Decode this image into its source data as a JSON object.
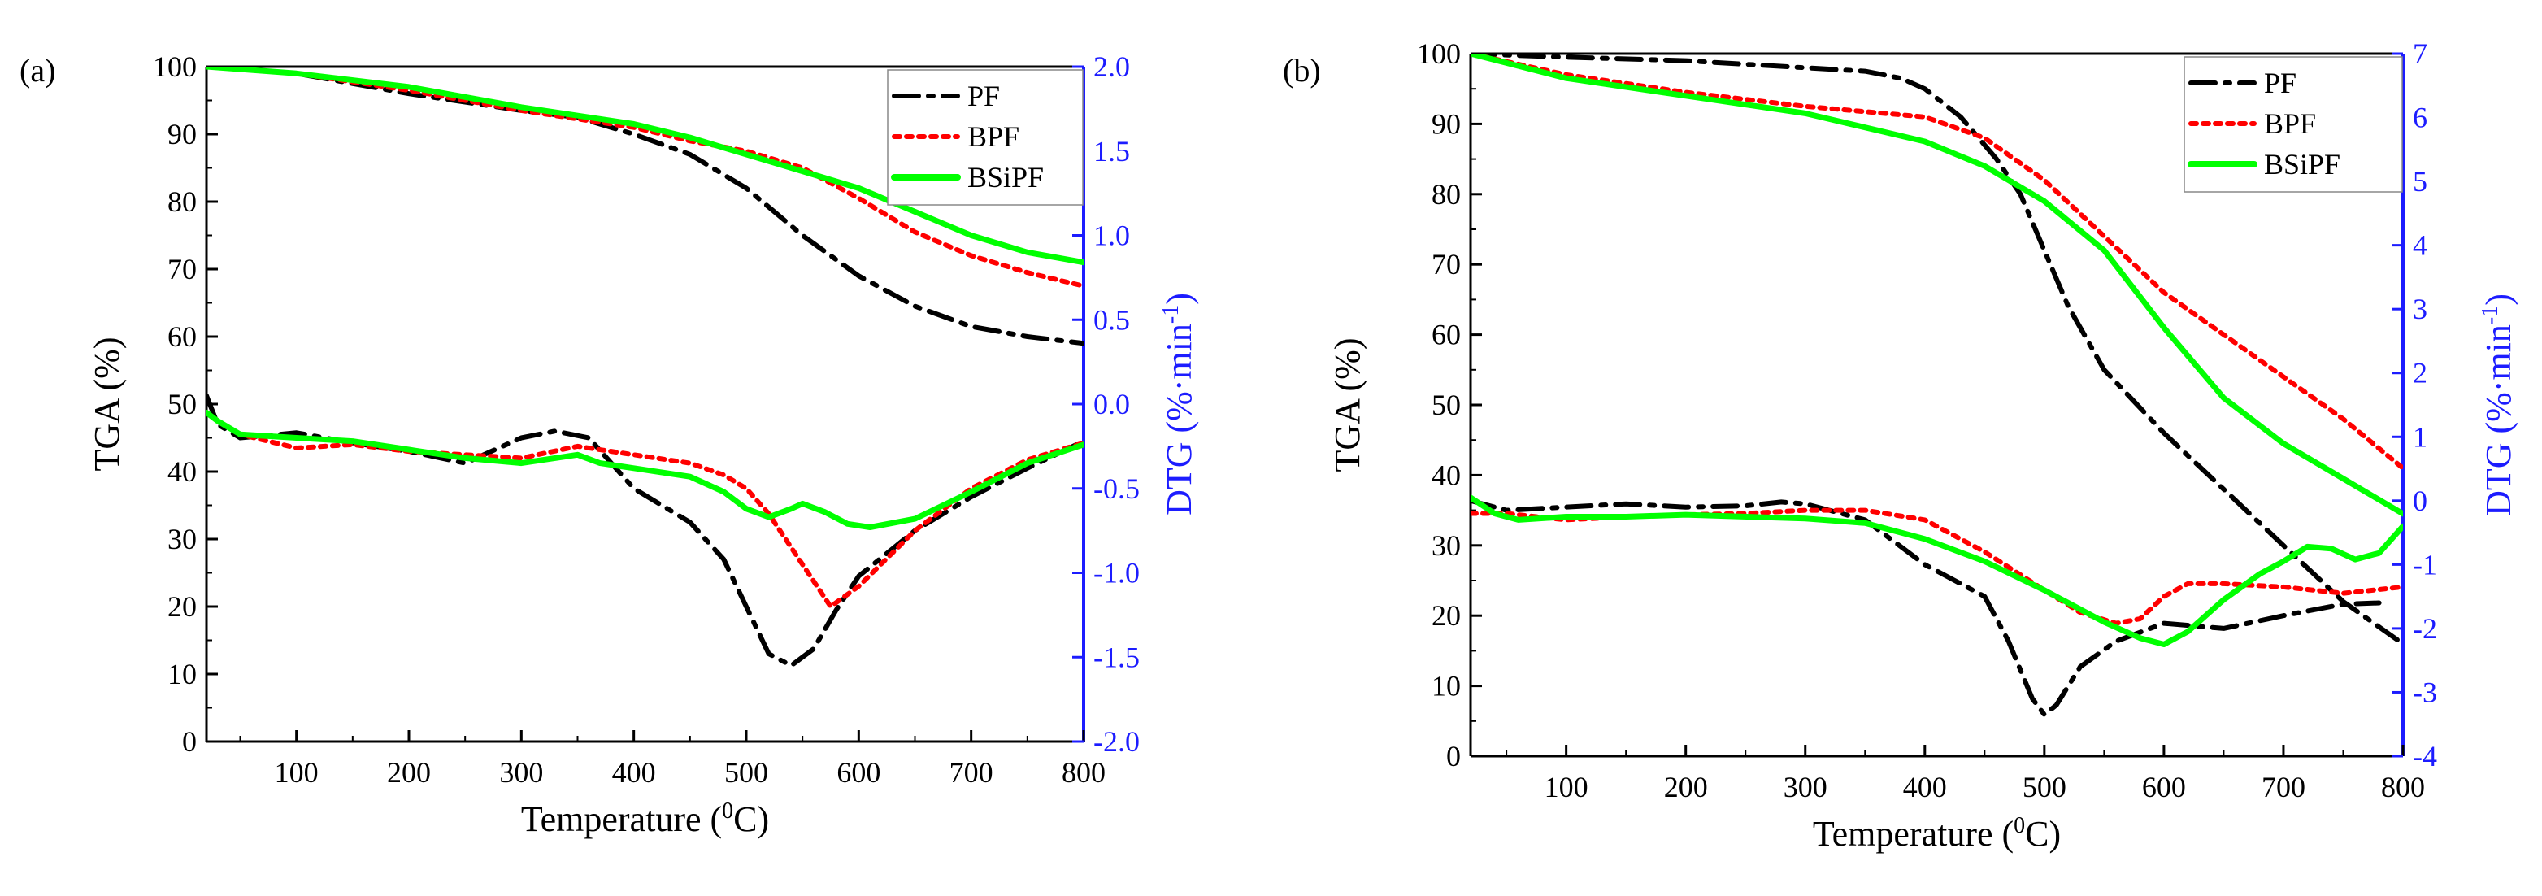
{
  "chart_data": [
    {
      "type": "line",
      "panel_label": "(a)",
      "xlabel_main": "Temperature (",
      "xlabel_sup": "0",
      "xlabel_unit": "C)",
      "ylabel_left": "TGA (%)",
      "ylabel_right_main": "DTG (%·min",
      "ylabel_right_sup": "-1",
      "ylabel_right_close": ")",
      "xlim": [
        20,
        800
      ],
      "ylim_left": [
        0,
        100
      ],
      "ylim_right": [
        -2.0,
        2.0
      ],
      "x_ticks": [
        "100",
        "200",
        "300",
        "400",
        "500",
        "600",
        "700",
        "800"
      ],
      "y_left_ticks": [
        "0",
        "10",
        "20",
        "30",
        "40",
        "50",
        "60",
        "70",
        "80",
        "90",
        "100"
      ],
      "y_right_ticks": [
        "-2.0",
        "-1.5",
        "-1.0",
        "-0.5",
        "0.0",
        "0.5",
        "1.0",
        "1.5",
        "2.0"
      ],
      "legend": [
        {
          "name": "PF",
          "color": "#000000",
          "dash": "dashdot"
        },
        {
          "name": "BPF",
          "color": "#ff0000",
          "dash": "dot"
        },
        {
          "name": "BSiPF",
          "color": "#00ff00",
          "dash": "solid"
        }
      ],
      "series": [
        {
          "name": "PF",
          "kind": "TGA",
          "axis": "left",
          "color": "#000000",
          "dash": "dashdot",
          "x": [
            20,
            100,
            200,
            300,
            350,
            400,
            450,
            500,
            550,
            600,
            650,
            700,
            750,
            800
          ],
          "y": [
            100,
            99,
            96,
            93.5,
            92.5,
            90,
            87,
            82,
            75,
            69,
            64.5,
            61.5,
            60,
            59
          ]
        },
        {
          "name": "BPF",
          "kind": "TGA",
          "axis": "left",
          "color": "#ff0000",
          "dash": "dot",
          "x": [
            20,
            100,
            200,
            300,
            400,
            450,
            500,
            550,
            600,
            650,
            700,
            750,
            800
          ],
          "y": [
            100,
            99,
            96.5,
            93.5,
            91,
            89,
            87.5,
            85,
            80.5,
            75.5,
            72,
            69.5,
            67.5
          ]
        },
        {
          "name": "BSiPF",
          "kind": "TGA",
          "axis": "left",
          "color": "#00ff00",
          "dash": "solid",
          "x": [
            20,
            100,
            200,
            300,
            400,
            450,
            500,
            550,
            600,
            650,
            700,
            750,
            800
          ],
          "y": [
            100,
            99,
            97,
            94,
            91.5,
            89.5,
            87,
            84.5,
            82,
            78.5,
            75,
            72.5,
            71
          ]
        },
        {
          "name": "PF",
          "kind": "DTG",
          "axis": "right",
          "color": "#000000",
          "dash": "dashdot",
          "x": [
            20,
            30,
            50,
            100,
            150,
            200,
            250,
            300,
            330,
            360,
            380,
            400,
            450,
            480,
            500,
            520,
            540,
            560,
            580,
            600,
            650,
            700,
            750,
            800
          ],
          "y": [
            0.05,
            -0.12,
            -0.2,
            -0.17,
            -0.23,
            -0.28,
            -0.35,
            -0.2,
            -0.16,
            -0.2,
            -0.35,
            -0.5,
            -0.7,
            -0.92,
            -1.2,
            -1.48,
            -1.55,
            -1.45,
            -1.22,
            -1.02,
            -0.75,
            -0.55,
            -0.38,
            -0.22
          ]
        },
        {
          "name": "BPF",
          "kind": "DTG",
          "axis": "right",
          "color": "#ff0000",
          "dash": "dot",
          "x": [
            20,
            30,
            50,
            100,
            150,
            200,
            250,
            300,
            350,
            400,
            450,
            480,
            500,
            520,
            540,
            560,
            575,
            600,
            650,
            700,
            750,
            800
          ],
          "y": [
            -0.05,
            -0.1,
            -0.18,
            -0.26,
            -0.24,
            -0.28,
            -0.3,
            -0.32,
            -0.25,
            -0.3,
            -0.35,
            -0.42,
            -0.5,
            -0.65,
            -0.85,
            -1.05,
            -1.2,
            -1.08,
            -0.75,
            -0.5,
            -0.33,
            -0.23
          ]
        },
        {
          "name": "BSiPF",
          "kind": "DTG",
          "axis": "right",
          "color": "#00ff00",
          "dash": "solid",
          "x": [
            20,
            30,
            50,
            100,
            150,
            200,
            250,
            300,
            330,
            350,
            370,
            400,
            450,
            480,
            500,
            520,
            540,
            550,
            570,
            590,
            610,
            650,
            700,
            750,
            800
          ],
          "y": [
            -0.05,
            -0.1,
            -0.18,
            -0.2,
            -0.22,
            -0.27,
            -0.32,
            -0.35,
            -0.32,
            -0.3,
            -0.35,
            -0.38,
            -0.43,
            -0.52,
            -0.62,
            -0.67,
            -0.62,
            -0.59,
            -0.64,
            -0.71,
            -0.73,
            -0.68,
            -0.52,
            -0.35,
            -0.24
          ]
        }
      ]
    },
    {
      "type": "line",
      "panel_label": "(b)",
      "xlabel_main": "Temperature (",
      "xlabel_sup": "0",
      "xlabel_unit": "C)",
      "ylabel_left": "TGA (%)",
      "ylabel_right_main": "DTG (%·min",
      "ylabel_right_sup": "-1",
      "ylabel_right_close": ")",
      "xlim": [
        20,
        800
      ],
      "ylim_left": [
        0,
        100
      ],
      "ylim_right": [
        -4,
        7
      ],
      "x_ticks": [
        "100",
        "200",
        "300",
        "400",
        "500",
        "600",
        "700",
        "800"
      ],
      "y_left_ticks": [
        "0",
        "10",
        "20",
        "30",
        "40",
        "50",
        "60",
        "70",
        "80",
        "90",
        "100"
      ],
      "y_right_ticks": [
        "-4",
        "-3",
        "-2",
        "-1",
        "0",
        "1",
        "2",
        "3",
        "4",
        "5",
        "6",
        "7"
      ],
      "legend": [
        {
          "name": "PF",
          "color": "#000000",
          "dash": "dashdot"
        },
        {
          "name": "BPF",
          "color": "#ff0000",
          "dash": "dot"
        },
        {
          "name": "BSiPF",
          "color": "#00ff00",
          "dash": "solid"
        }
      ],
      "series": [
        {
          "name": "PF",
          "kind": "TGA",
          "axis": "left",
          "color": "#000000",
          "dash": "dashdot",
          "x": [
            20,
            100,
            200,
            250,
            300,
            350,
            380,
            400,
            430,
            460,
            480,
            500,
            520,
            550,
            600,
            650,
            700,
            750,
            800
          ],
          "y": [
            100,
            99.5,
            99,
            98.5,
            98,
            97.5,
            96.5,
            95,
            91,
            85,
            80,
            72,
            64,
            55,
            46,
            38,
            30,
            22,
            16
          ]
        },
        {
          "name": "BPF",
          "kind": "TGA",
          "axis": "left",
          "color": "#ff0000",
          "dash": "dot",
          "x": [
            20,
            100,
            200,
            300,
            400,
            450,
            500,
            550,
            600,
            650,
            700,
            750,
            800
          ],
          "y": [
            100,
            97,
            94.5,
            92.5,
            91,
            88,
            82,
            74,
            66,
            60,
            54,
            48,
            41
          ]
        },
        {
          "name": "BSiPF",
          "kind": "TGA",
          "axis": "left",
          "color": "#00ff00",
          "dash": "solid",
          "x": [
            20,
            100,
            200,
            300,
            400,
            450,
            500,
            550,
            600,
            650,
            700,
            750,
            800
          ],
          "y": [
            100,
            96.5,
            94,
            91.5,
            87.5,
            84,
            79,
            72,
            61,
            51,
            44.5,
            39.5,
            34.5
          ]
        },
        {
          "name": "PF",
          "kind": "DTG",
          "axis": "right",
          "color": "#000000",
          "dash": "dashdot",
          "x": [
            20,
            50,
            100,
            150,
            200,
            250,
            280,
            300,
            350,
            400,
            450,
            470,
            490,
            500,
            510,
            530,
            560,
            600,
            650,
            700,
            750,
            780
          ],
          "y": [
            0,
            -0.15,
            -0.1,
            -0.05,
            -0.1,
            -0.08,
            -0.02,
            -0.05,
            -0.3,
            -1.0,
            -1.5,
            -2.2,
            -3.1,
            -3.35,
            -3.2,
            -2.6,
            -2.2,
            -1.92,
            -2.0,
            -1.8,
            -1.62,
            -1.6
          ]
        },
        {
          "name": "BPF",
          "kind": "DTG",
          "axis": "right",
          "color": "#ff0000",
          "dash": "dot",
          "x": [
            20,
            50,
            100,
            150,
            200,
            250,
            300,
            350,
            400,
            450,
            500,
            530,
            560,
            580,
            600,
            620,
            650,
            700,
            750,
            800
          ],
          "y": [
            -0.2,
            -0.2,
            -0.3,
            -0.25,
            -0.22,
            -0.2,
            -0.15,
            -0.15,
            -0.3,
            -0.8,
            -1.4,
            -1.75,
            -1.92,
            -1.85,
            -1.5,
            -1.3,
            -1.3,
            -1.35,
            -1.45,
            -1.35
          ]
        },
        {
          "name": "BSiPF",
          "kind": "DTG",
          "axis": "right",
          "color": "#00ff00",
          "dash": "solid",
          "x": [
            20,
            40,
            60,
            100,
            150,
            200,
            300,
            350,
            400,
            450,
            500,
            550,
            580,
            600,
            620,
            650,
            680,
            700,
            720,
            740,
            760,
            780,
            800
          ],
          "y": [
            0.05,
            -0.2,
            -0.3,
            -0.25,
            -0.25,
            -0.22,
            -0.28,
            -0.35,
            -0.6,
            -0.95,
            -1.4,
            -1.9,
            -2.15,
            -2.25,
            -2.05,
            -1.55,
            -1.15,
            -0.95,
            -0.72,
            -0.75,
            -0.92,
            -0.82,
            -0.4
          ]
        }
      ]
    }
  ]
}
